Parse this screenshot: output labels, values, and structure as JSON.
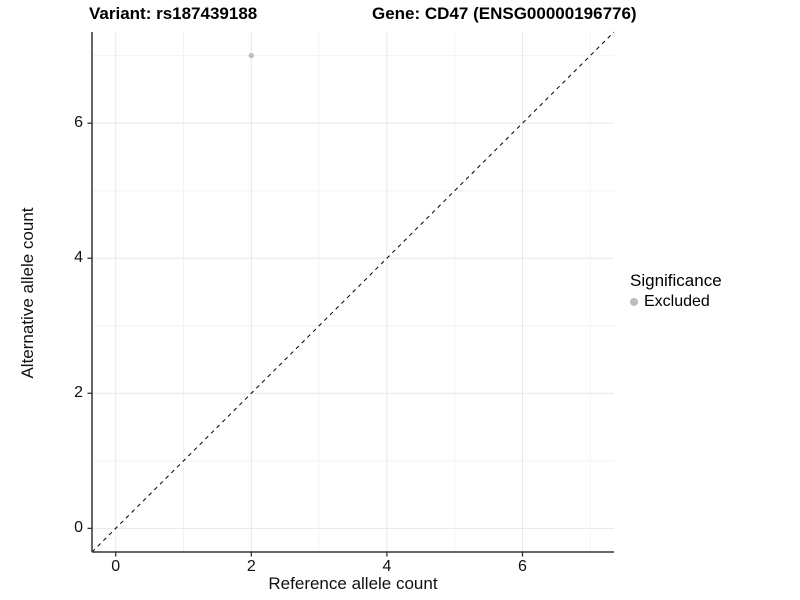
{
  "chart_data": {
    "type": "scatter",
    "title_left": "Variant: rs187439188",
    "title_right": "Gene: CD47 (ENSG00000196776)",
    "xlabel": "Reference allele count",
    "ylabel": "Alternative allele count",
    "xlim": [
      -0.35,
      7.35
    ],
    "ylim": [
      -0.35,
      7.35
    ],
    "x_ticks": [
      0,
      2,
      4,
      6
    ],
    "y_ticks": [
      0,
      2,
      4,
      6
    ],
    "x_minor_ticks": [
      1,
      3,
      5,
      7
    ],
    "y_minor_ticks": [
      1,
      3,
      5,
      7
    ],
    "grid": true,
    "legend_position": "right",
    "legend": {
      "title": "Significance",
      "entries": [
        {
          "label": "Excluded",
          "color": "#bdbdbd"
        }
      ]
    },
    "series": [
      {
        "name": "Excluded",
        "color": "#bdbdbd",
        "points": [
          {
            "x": 2,
            "y": 7
          }
        ]
      }
    ],
    "reference_line": {
      "type": "identity",
      "style": "dashed",
      "color": "#000000",
      "from": [
        -0.35,
        -0.35
      ],
      "to": [
        7.35,
        7.35
      ]
    },
    "colors": {
      "grid_major": "#e7e7e7",
      "grid_minor": "#f3f3f3",
      "axis_line": "#333333",
      "tick_mark": "#333333",
      "background": "#ffffff"
    }
  }
}
